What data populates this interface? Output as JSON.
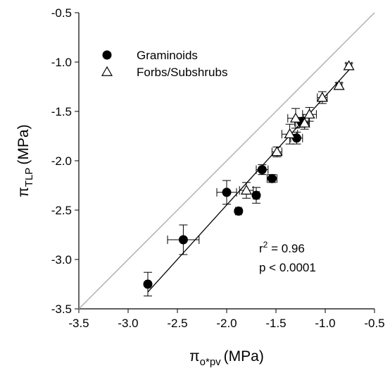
{
  "chart_data": {
    "type": "scatter",
    "xlabel": {
      "symbol": "π",
      "subscript": "o*pv",
      "unit": "(MPa)"
    },
    "ylabel": {
      "symbol": "π",
      "subscript": "TLP",
      "unit": "(MPa)"
    },
    "xlim": [
      -3.5,
      -0.5
    ],
    "ylim": [
      -3.5,
      -0.5
    ],
    "xticks": [
      -3.5,
      {
        "value": -3.0,
        "label": "-3.0"
      },
      -2.5,
      {
        "value": -2.0,
        "label": "-2.0"
      },
      -1.5,
      {
        "value": -1.0,
        "label": "-1.0"
      },
      -0.5
    ],
    "yticks": [
      -3.5,
      {
        "value": -3.0,
        "label": "-3.0"
      },
      -2.5,
      {
        "value": -2.0,
        "label": "-2.0"
      },
      -1.5,
      {
        "value": -1.0,
        "label": "-1.0"
      },
      -0.5
    ],
    "identity_line": {
      "color": "#b0b0b0"
    },
    "regression": {
      "x": [
        -2.8,
        -0.75
      ],
      "y": [
        -3.33,
        -1.07
      ],
      "color": "#000000"
    },
    "series": [
      {
        "name": "Graminoids",
        "marker": "circle",
        "color": "#000000",
        "x": [
          -2.8,
          -2.44,
          -2.0,
          -1.88,
          -1.7,
          -1.64,
          -1.54,
          -1.29,
          -1.24
        ],
        "y": [
          -3.25,
          -2.8,
          -2.32,
          -2.51,
          -2.35,
          -2.09,
          -2.18,
          -1.77,
          -1.61
        ],
        "xerr": [
          0.02,
          0.16,
          0.1,
          0.03,
          0.03,
          0.06,
          0.05,
          0.06,
          0.07
        ],
        "yerr": [
          0.12,
          0.15,
          0.12,
          0.02,
          0.08,
          0.05,
          0.04,
          0.06,
          0.05
        ]
      },
      {
        "name": "Forbs/Subshrubs",
        "marker": "triangle",
        "color": "#000000",
        "x": [
          -0.76,
          -0.86,
          -1.03,
          -1.16,
          -1.3,
          -1.21,
          -1.36,
          -1.49,
          -1.8
        ],
        "y": [
          -1.04,
          -1.24,
          -1.36,
          -1.53,
          -1.57,
          -1.62,
          -1.73,
          -1.91,
          -2.3
        ],
        "xerr": [
          0.03,
          0.03,
          0.05,
          0.07,
          0.08,
          0.05,
          0.08,
          0.05,
          0.07
        ],
        "yerr": [
          0.03,
          0.03,
          0.06,
          0.07,
          0.1,
          0.06,
          0.1,
          0.05,
          0.08
        ]
      }
    ],
    "annotation": {
      "r_symbol": "r",
      "r_sup": "2",
      "r_value": " = 0.96",
      "p_text": "p < 0.0001"
    }
  }
}
